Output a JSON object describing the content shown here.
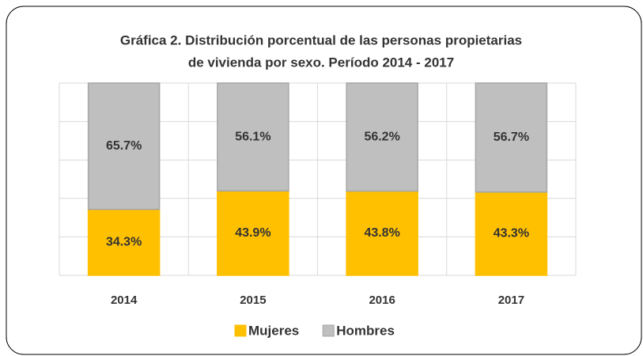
{
  "chart_data": {
    "type": "stacked_bar",
    "title": [
      "Gráfica 2. Distribución porcentual de las personas propietarias",
      "de vivienda por sexo. Período 2014 - 2017"
    ],
    "categories": [
      "2014",
      "2015",
      "2016",
      "2017"
    ],
    "series": [
      {
        "name": "Mujeres",
        "color": "#ffc000",
        "values": [
          34.3,
          43.9,
          43.8,
          43.3
        ],
        "value_labels": [
          "34.3%",
          "43.9%",
          "43.8%",
          "43.3%"
        ]
      },
      {
        "name": "Hombres",
        "color": "#bfbfbf",
        "values": [
          65.7,
          56.1,
          56.2,
          56.7
        ],
        "value_labels": [
          "65.7%",
          "56.1%",
          "56.2%",
          "56.7%"
        ]
      }
    ],
    "ylim": [
      0,
      100
    ],
    "yticks": [
      0,
      20,
      40,
      60,
      80,
      100
    ],
    "grid": true,
    "legend": "bottom"
  }
}
